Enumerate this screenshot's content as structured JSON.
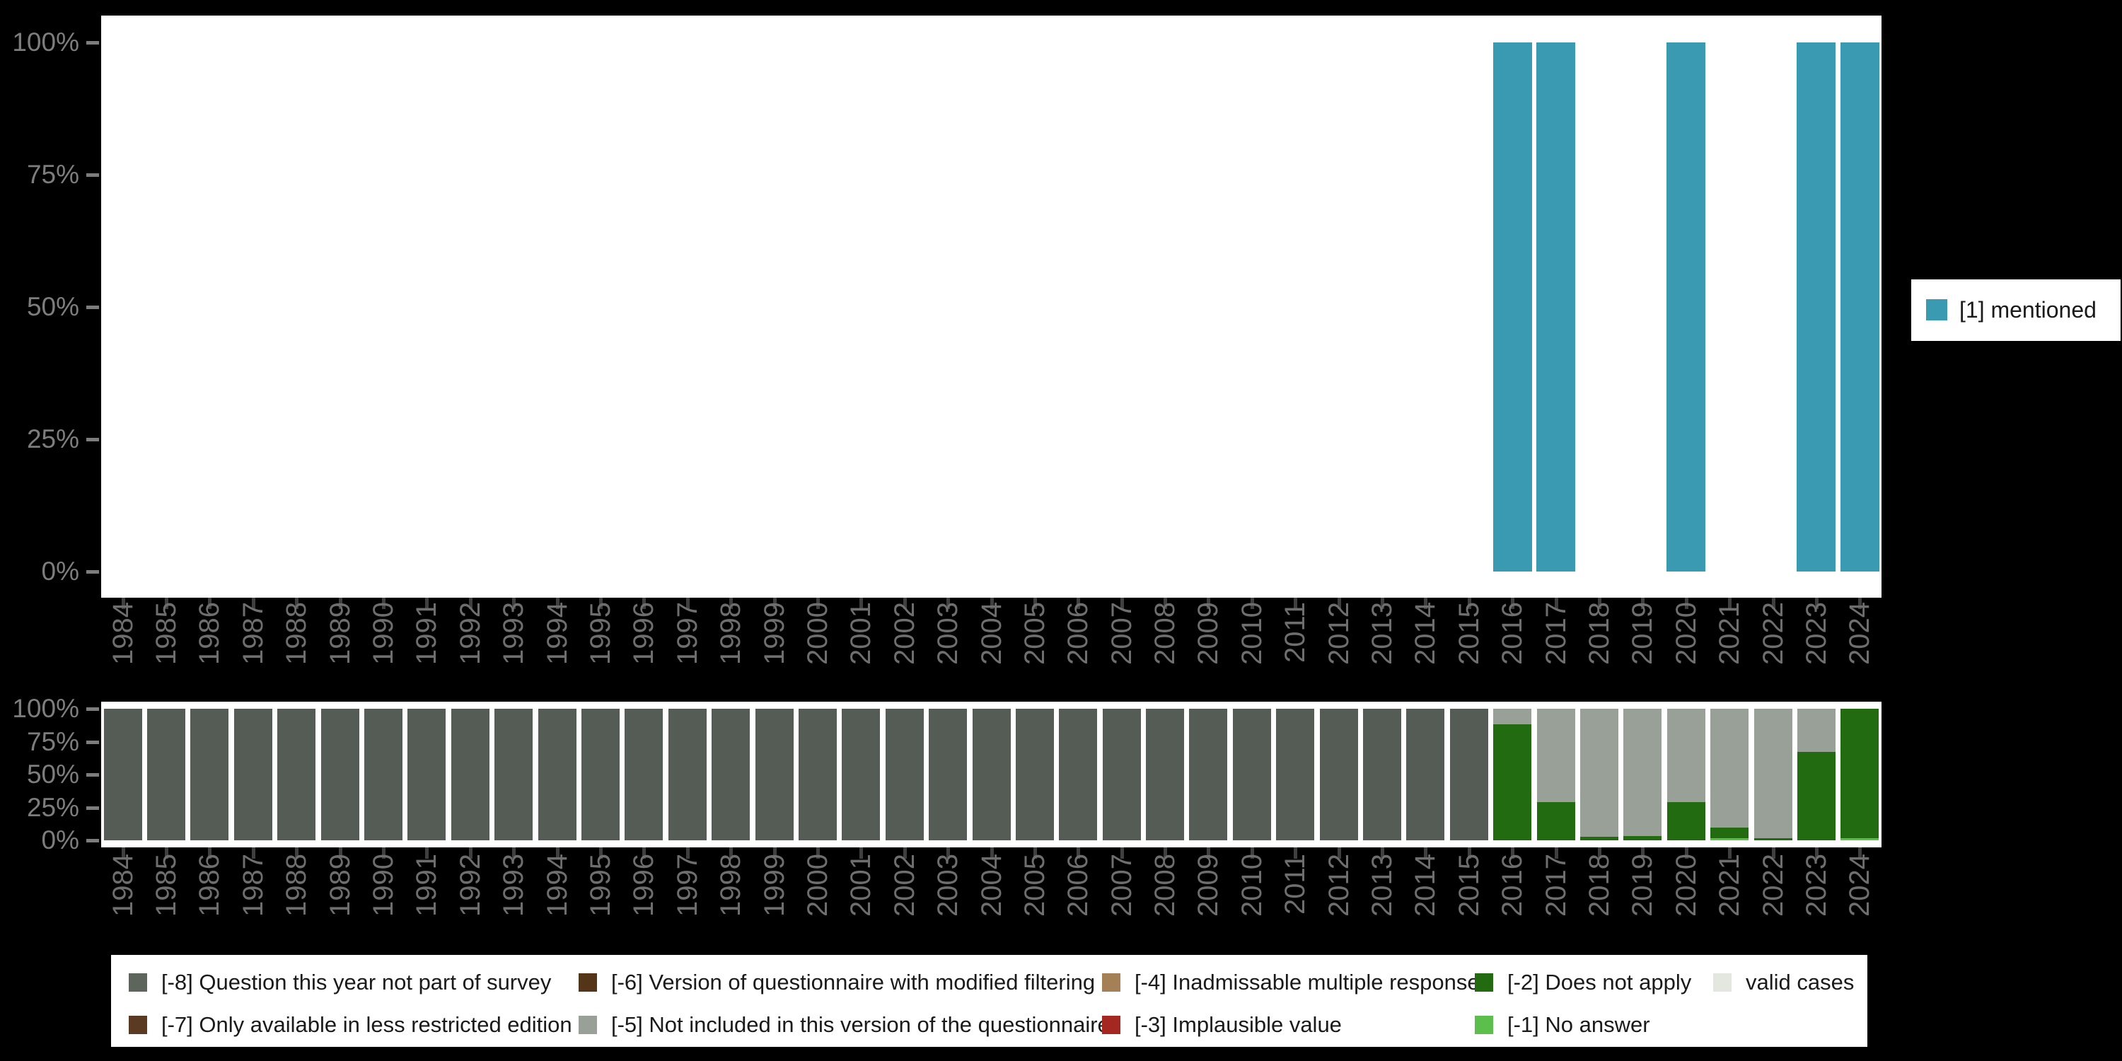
{
  "chart_data": [
    {
      "type": "bar",
      "title": "",
      "xlabel": "",
      "ylabel": "",
      "ylim": [
        0,
        100
      ],
      "grid": false,
      "legend_position": "right",
      "yticks": [
        "100%",
        "75%",
        "50%",
        "25%",
        "0%"
      ],
      "categories": [
        "1984",
        "1985",
        "1986",
        "1987",
        "1988",
        "1989",
        "1990",
        "1991",
        "1992",
        "1993",
        "1994",
        "1995",
        "1996",
        "1997",
        "1998",
        "1999",
        "2000",
        "2001",
        "2002",
        "2003",
        "2004",
        "2005",
        "2006",
        "2007",
        "2008",
        "2009",
        "2010",
        "2011",
        "2012",
        "2013",
        "2014",
        "2015",
        "2016",
        "2017",
        "2018",
        "2019",
        "2020",
        "2021",
        "2022",
        "2023",
        "2024"
      ],
      "series": [
        {
          "name": "[1] mentioned",
          "color": "#3a9ab2",
          "values": [
            0,
            0,
            0,
            0,
            0,
            0,
            0,
            0,
            0,
            0,
            0,
            0,
            0,
            0,
            0,
            0,
            0,
            0,
            0,
            0,
            0,
            0,
            0,
            0,
            0,
            0,
            0,
            0,
            0,
            0,
            0,
            0,
            100,
            100,
            0,
            0,
            100,
            0,
            0,
            100,
            100
          ]
        }
      ]
    },
    {
      "type": "stacked-bar",
      "title": "",
      "xlabel": "",
      "ylabel": "",
      "ylim": [
        0,
        100
      ],
      "grid": false,
      "legend_position": "bottom",
      "yticks": [
        "100%",
        "75%",
        "50%",
        "25%",
        "0%"
      ],
      "categories": [
        "1984",
        "1985",
        "1986",
        "1987",
        "1988",
        "1989",
        "1990",
        "1991",
        "1992",
        "1993",
        "1994",
        "1995",
        "1996",
        "1997",
        "1998",
        "1999",
        "2000",
        "2001",
        "2002",
        "2003",
        "2004",
        "2005",
        "2006",
        "2007",
        "2008",
        "2009",
        "2010",
        "2011",
        "2012",
        "2013",
        "2014",
        "2015",
        "2016",
        "2017",
        "2018",
        "2019",
        "2020",
        "2021",
        "2022",
        "2023",
        "2024"
      ],
      "series": [
        {
          "name": "[-1] No answer",
          "color": "#5cbf4b",
          "values": [
            0,
            0,
            0,
            0,
            0,
            0,
            0,
            0,
            0,
            0,
            0,
            0,
            0,
            0,
            0,
            0,
            0,
            0,
            0,
            0,
            0,
            0,
            0,
            0,
            0,
            0,
            0,
            0,
            0,
            0,
            0,
            0,
            0,
            0,
            0,
            0,
            0,
            1.5,
            0,
            0,
            1.5
          ]
        },
        {
          "name": "[-2] Does not apply",
          "color": "#226b11",
          "values": [
            0,
            0,
            0,
            0,
            0,
            0,
            0,
            0,
            0,
            0,
            0,
            0,
            0,
            0,
            0,
            0,
            0,
            0,
            0,
            0,
            0,
            0,
            0,
            0,
            0,
            0,
            0,
            0,
            0,
            0,
            0,
            0,
            88,
            29,
            2.5,
            3,
            29,
            8,
            1.5,
            67,
            98.5
          ]
        },
        {
          "name": "[-5] Not included in this version of the questionnaire",
          "color": "#99a097",
          "values": [
            0,
            0,
            0,
            0,
            0,
            0,
            0,
            0,
            0,
            0,
            0,
            0,
            0,
            0,
            0,
            0,
            0,
            0,
            0,
            0,
            0,
            0,
            0,
            0,
            0,
            0,
            0,
            0,
            0,
            0,
            0,
            0,
            12,
            71,
            97.5,
            97,
            71,
            90.5,
            98.5,
            33,
            0
          ]
        },
        {
          "name": "[-8] Question this year not part of survey",
          "color": "#555c55",
          "values": [
            100,
            100,
            100,
            100,
            100,
            100,
            100,
            100,
            100,
            100,
            100,
            100,
            100,
            100,
            100,
            100,
            100,
            100,
            100,
            100,
            100,
            100,
            100,
            100,
            100,
            100,
            100,
            100,
            100,
            100,
            100,
            100,
            0,
            0,
            0,
            0,
            0,
            0,
            0,
            0,
            0
          ]
        }
      ]
    }
  ],
  "axis": {
    "ytick_labels": [
      "100%",
      "75%",
      "50%",
      "25%",
      "0%"
    ],
    "tick_color": "#7d7d7d",
    "year_label_color": "#6e6e6e"
  },
  "top_legend": {
    "label": "[1] mentioned",
    "color": "#3a9ab2"
  },
  "bottom_legend": {
    "items": [
      {
        "label": "[-8] Question this year not part of survey",
        "color": "#5d655d",
        "col": 0,
        "row": 0
      },
      {
        "label": "[-7] Only available in less restricted edition",
        "color": "#5a3a22",
        "col": 0,
        "row": 1
      },
      {
        "label": "[-6] Version of questionnaire with modified filtering",
        "color": "#553517",
        "col": 1,
        "row": 0
      },
      {
        "label": "[-5] Not included in this version of the questionnaire",
        "color": "#99a097",
        "col": 1,
        "row": 1
      },
      {
        "label": "[-4] Inadmissable multiple response",
        "color": "#a57f56",
        "col": 2,
        "row": 0
      },
      {
        "label": "[-3] Implausible value",
        "color": "#a42722",
        "col": 2,
        "row": 1
      },
      {
        "label": "[-2] Does not apply",
        "color": "#226b11",
        "col": 3,
        "row": 0
      },
      {
        "label": "[-1] No answer",
        "color": "#5cbf4b",
        "col": 3,
        "row": 1
      },
      {
        "label": "valid cases",
        "color": "#e3e7e0",
        "col": 4,
        "row": 0
      }
    ]
  }
}
